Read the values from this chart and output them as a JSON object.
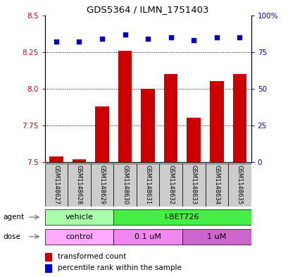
{
  "title": "GDS5364 / ILMN_1751403",
  "samples": [
    "GSM1148627",
    "GSM1148628",
    "GSM1148629",
    "GSM1148630",
    "GSM1148631",
    "GSM1148632",
    "GSM1148633",
    "GSM1148634",
    "GSM1148635"
  ],
  "transformed_counts": [
    7.54,
    7.52,
    7.88,
    8.26,
    8.0,
    8.1,
    7.8,
    8.05,
    8.1
  ],
  "percentile_ranks": [
    82,
    82,
    84,
    87,
    84,
    85,
    83,
    85,
    85
  ],
  "ylim_left": [
    7.5,
    8.5
  ],
  "ylim_right": [
    0,
    100
  ],
  "yticks_left": [
    7.5,
    7.75,
    8.0,
    8.25,
    8.5
  ],
  "yticks_right": [
    0,
    25,
    50,
    75,
    100
  ],
  "bar_color": "#cc0000",
  "dot_color": "#0000cc",
  "agent_labels": [
    {
      "label": "vehicle",
      "start": 0,
      "end": 3,
      "color": "#aaffaa"
    },
    {
      "label": "I-BET726",
      "start": 3,
      "end": 9,
      "color": "#44ee44"
    }
  ],
  "dose_labels": [
    {
      "label": "control",
      "start": 0,
      "end": 3,
      "color": "#ffaaff"
    },
    {
      "label": "0.1 uM",
      "start": 3,
      "end": 6,
      "color": "#ee88ee"
    },
    {
      "label": "1 uM",
      "start": 6,
      "end": 9,
      "color": "#cc66cc"
    }
  ],
  "legend_red": "transformed count",
  "legend_blue": "percentile rank within the sample",
  "axis_label_color_left": "#cc0000",
  "axis_label_color_right": "#0000cc",
  "sample_box_color": "#cccccc",
  "grid_color": "#000000"
}
